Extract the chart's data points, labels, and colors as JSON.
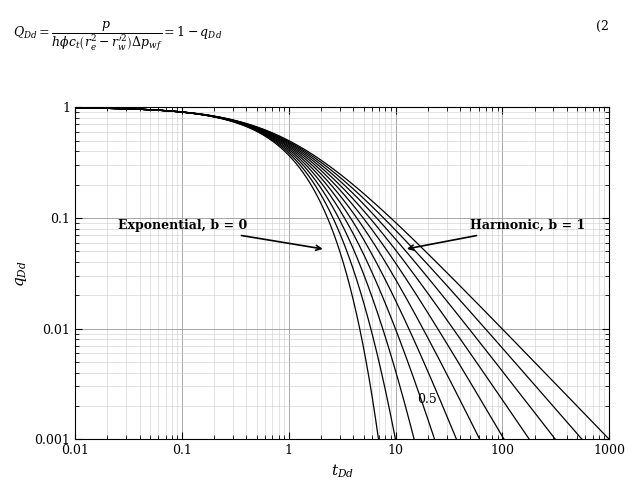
{
  "title": "",
  "xlabel": "t_{Dd}",
  "ylabel": "q_{Dd}",
  "xlim": [
    0.01,
    1000
  ],
  "ylim": [
    0.001,
    1.0
  ],
  "b_values": [
    0.0,
    0.1,
    0.2,
    0.3,
    0.4,
    0.5,
    0.6,
    0.7,
    0.8,
    0.9,
    1.0
  ],
  "line_color": "#000000",
  "background_color": "#ffffff",
  "grid_major_color": "#999999",
  "grid_minor_color": "#cccccc",
  "annotation_exp": "Exponential, b = 0",
  "annotation_harm": "Harmonic, b = 1",
  "annotation_mid": "0.5",
  "formula_text": "$Q_{Dd} = \\dfrac{p}{h\\phi c_t\\left(r_e^2 - r_w^{\\prime 2}\\right)\\Delta p_{wf}} = 1 - q_{Dd}$",
  "eq_number": "(2",
  "figsize": [
    6.28,
    4.88
  ],
  "dpi": 100
}
